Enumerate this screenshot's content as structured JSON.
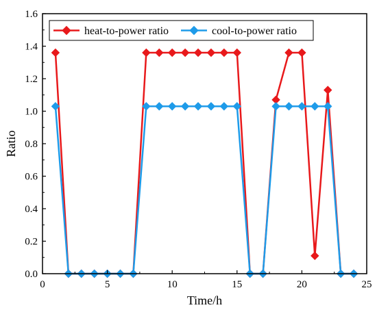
{
  "chart_data": {
    "type": "line",
    "xlabel": "Time/h",
    "ylabel": "Ratio",
    "xlim": [
      0,
      25
    ],
    "ylim": [
      0,
      1.6
    ],
    "xticks": [
      0,
      5,
      10,
      15,
      20,
      25
    ],
    "yticks": [
      0.0,
      0.2,
      0.4,
      0.6,
      0.8,
      1.0,
      1.2,
      1.4,
      1.6
    ],
    "xtick_labels": [
      "0",
      "5",
      "10",
      "15",
      "20",
      "25"
    ],
    "ytick_labels": [
      "0.0",
      "0.2",
      "0.4",
      "0.6",
      "0.8",
      "1.0",
      "1.2",
      "1.4",
      "1.6"
    ],
    "grid": false,
    "legend_position": "top-left",
    "series": [
      {
        "name": "heat-to-power ratio",
        "color": "#e8191b",
        "marker": "diamond",
        "x": [
          1,
          2,
          3,
          4,
          5,
          6,
          7,
          8,
          9,
          10,
          11,
          12,
          13,
          14,
          15,
          16,
          17,
          18,
          19,
          20,
          21,
          22,
          23,
          24
        ],
        "y": [
          1.36,
          0,
          0,
          0,
          0,
          0,
          0,
          1.36,
          1.36,
          1.36,
          1.36,
          1.36,
          1.36,
          1.36,
          1.36,
          0,
          0,
          1.07,
          1.36,
          1.36,
          0.11,
          1.13,
          0,
          0
        ]
      },
      {
        "name": "cool-to-power ratio",
        "color": "#1e9be9",
        "marker": "diamond",
        "x": [
          1,
          2,
          3,
          4,
          5,
          6,
          7,
          8,
          9,
          10,
          11,
          12,
          13,
          14,
          15,
          16,
          17,
          18,
          19,
          20,
          21,
          22,
          23,
          24
        ],
        "y": [
          1.03,
          0,
          0,
          0,
          0,
          0,
          0,
          1.03,
          1.03,
          1.03,
          1.03,
          1.03,
          1.03,
          1.03,
          1.03,
          0,
          0,
          1.03,
          1.03,
          1.03,
          1.03,
          1.03,
          0,
          0
        ]
      }
    ]
  }
}
